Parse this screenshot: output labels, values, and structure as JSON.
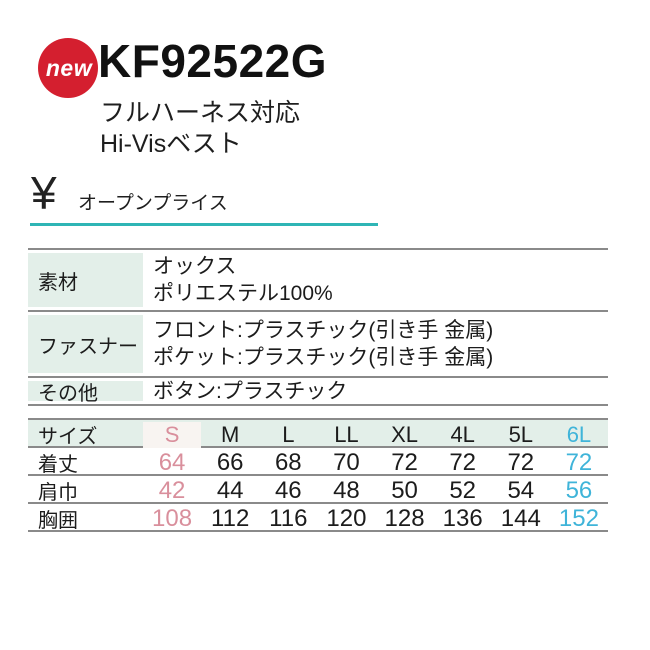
{
  "badge": {
    "label": "new"
  },
  "product": {
    "code": "KF92522G",
    "subtitle_line1": "フルハーネス対応",
    "subtitle_line2": "Hi-Visベスト"
  },
  "price": {
    "currency_symbol": "¥",
    "label": "オープンプライス"
  },
  "spec_table": {
    "rows": [
      {
        "label": "素材",
        "lines": [
          "オックス",
          "ポリエステル100%"
        ]
      },
      {
        "label": "ファスナー",
        "lines": [
          "フロント:プラスチック(引き手 金属)",
          "ポケット:プラスチック(引き手 金属)"
        ]
      },
      {
        "label": "その他",
        "lines": [
          "ボタン:プラスチック"
        ]
      }
    ]
  },
  "size_table": {
    "header_label": "サイズ",
    "columns": [
      "S",
      "M",
      "L",
      "LL",
      "XL",
      "4L",
      "5L",
      "6L"
    ],
    "rows": [
      {
        "label": "着丈",
        "values": [
          "64",
          "66",
          "68",
          "70",
          "72",
          "72",
          "72",
          "72"
        ]
      },
      {
        "label": "肩巾",
        "values": [
          "42",
          "44",
          "46",
          "48",
          "50",
          "52",
          "54",
          "56"
        ]
      },
      {
        "label": "胸囲",
        "values": [
          "108",
          "112",
          "116",
          "120",
          "128",
          "136",
          "144",
          "152"
        ]
      }
    ]
  },
  "colors": {
    "badge_red": "#d41f2f",
    "accent_teal": "#2fb5b5",
    "table_mint": "#e3efe9",
    "s_column_band": "#f8f4f1",
    "s_column_text": "#d98f9c",
    "col_6l_text": "#3fb4d9",
    "line_gray": "#8a8a8a"
  }
}
